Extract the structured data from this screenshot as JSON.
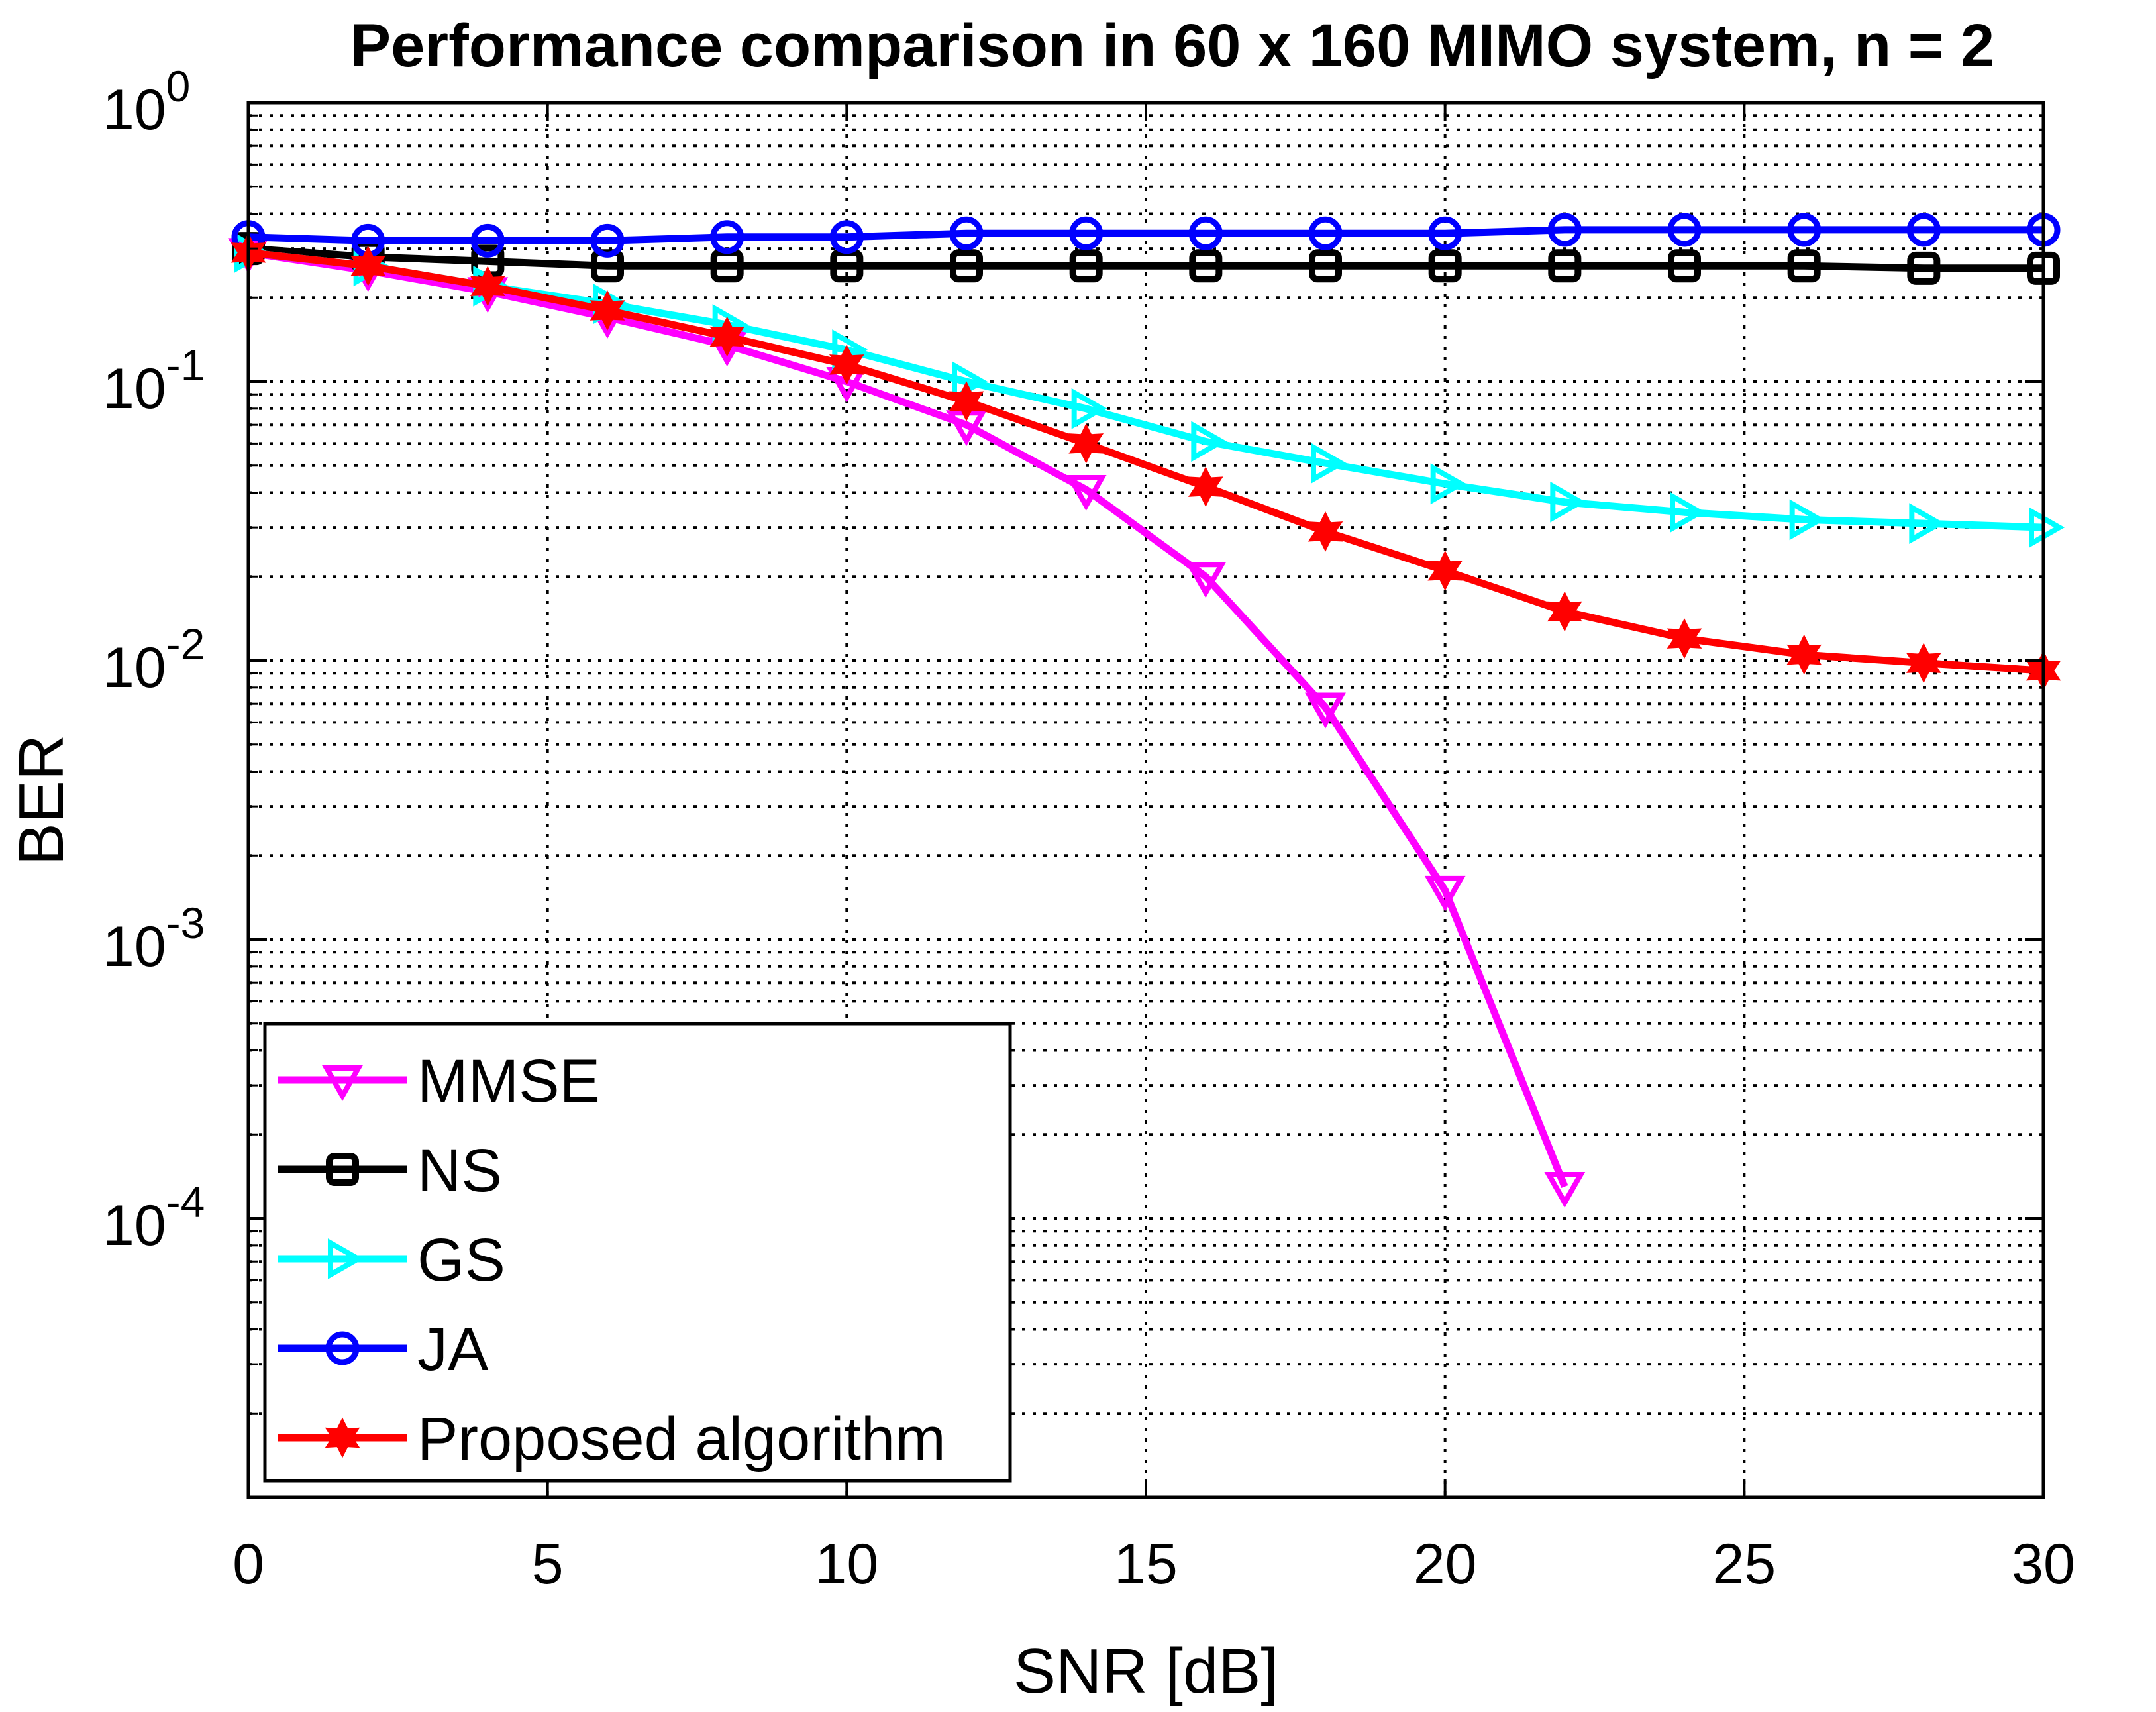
{
  "chart_data": {
    "type": "line",
    "title": "Performance comparison in 60 x 160 MIMO system, n = 2",
    "xlabel": "SNR [dB]",
    "ylabel": "BER",
    "xlim": [
      0,
      30
    ],
    "ylim": [
      1e-05,
      1
    ],
    "yscale": "log",
    "grid": true,
    "x_ticks": [
      0,
      5,
      10,
      15,
      20,
      25,
      30
    ],
    "x_tick_labels": [
      "0",
      "5",
      "10",
      "15",
      "20",
      "25",
      "30"
    ],
    "y_ticks": [
      1,
      0.1,
      0.01,
      0.001,
      0.0001
    ],
    "y_tick_labels": [
      {
        "base": "10",
        "exp": "0"
      },
      {
        "base": "10",
        "exp": "-1"
      },
      {
        "base": "10",
        "exp": "-2"
      },
      {
        "base": "10",
        "exp": "-3"
      },
      {
        "base": "10",
        "exp": "-4"
      }
    ],
    "legend_location": "bottom-left",
    "series": [
      {
        "name": "MMSE",
        "color": "#ff00ff",
        "marker": "triangle-down",
        "x": [
          0,
          2,
          4,
          6,
          8,
          10,
          12,
          14,
          16,
          18,
          20,
          22
        ],
        "values": [
          0.29,
          0.25,
          0.21,
          0.17,
          0.135,
          0.1,
          0.07,
          0.041,
          0.02,
          0.0068,
          0.0015,
          0.00013
        ]
      },
      {
        "name": "NS",
        "color": "#000000",
        "marker": "square",
        "x": [
          0,
          2,
          4,
          6,
          8,
          10,
          12,
          14,
          16,
          18,
          20,
          22,
          24,
          26,
          28,
          30
        ],
        "values": [
          0.3,
          0.28,
          0.27,
          0.26,
          0.26,
          0.26,
          0.26,
          0.26,
          0.26,
          0.26,
          0.26,
          0.26,
          0.26,
          0.26,
          0.255,
          0.255
        ]
      },
      {
        "name": "GS",
        "color": "#00ffff",
        "marker": "triangle-right",
        "x": [
          0,
          2,
          4,
          6,
          8,
          10,
          12,
          14,
          16,
          18,
          20,
          22,
          24,
          26,
          28,
          30
        ],
        "values": [
          0.29,
          0.26,
          0.22,
          0.19,
          0.16,
          0.13,
          0.1,
          0.08,
          0.061,
          0.051,
          0.043,
          0.037,
          0.034,
          0.032,
          0.031,
          0.03
        ]
      },
      {
        "name": "JA",
        "color": "#0000ff",
        "marker": "circle",
        "x": [
          0,
          2,
          4,
          6,
          8,
          10,
          12,
          14,
          16,
          18,
          20,
          22,
          24,
          26,
          28,
          30
        ],
        "values": [
          0.33,
          0.32,
          0.32,
          0.32,
          0.33,
          0.33,
          0.34,
          0.34,
          0.34,
          0.34,
          0.34,
          0.35,
          0.35,
          0.35,
          0.35,
          0.35
        ]
      },
      {
        "name": "Proposed algorithm",
        "color": "#ff0000",
        "marker": "star",
        "x": [
          0,
          2,
          4,
          6,
          8,
          10,
          12,
          14,
          16,
          18,
          20,
          22,
          24,
          26,
          28,
          30
        ],
        "values": [
          0.29,
          0.26,
          0.22,
          0.18,
          0.145,
          0.115,
          0.085,
          0.06,
          0.042,
          0.029,
          0.021,
          0.015,
          0.012,
          0.0105,
          0.0098,
          0.0092
        ]
      }
    ]
  }
}
